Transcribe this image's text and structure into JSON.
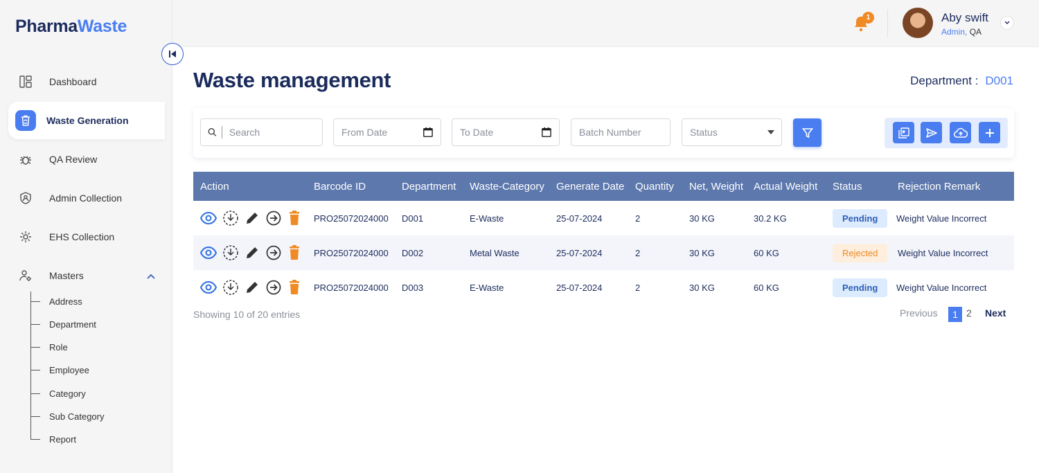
{
  "brand": {
    "part1": "Pharma",
    "part2": "Waste"
  },
  "sidebar": {
    "items": [
      {
        "label": "Dashboard",
        "icon": "dashboard-icon"
      },
      {
        "label": "Waste Generation",
        "icon": "recycle-bin-icon",
        "active": true
      },
      {
        "label": "QA Review",
        "icon": "bug-icon"
      },
      {
        "label": "Admin Collection",
        "icon": "shield-user-icon"
      },
      {
        "label": "EHS Collection",
        "icon": "gear-user-icon"
      },
      {
        "label": "Masters",
        "icon": "users-settings-icon",
        "expanded": true
      }
    ],
    "sub_items": [
      "Address",
      "Department",
      "Role",
      "Employee",
      "Category",
      "Sub Category",
      "Report"
    ]
  },
  "topbar": {
    "notification_count": "1",
    "user_name": "Aby swift",
    "user_role_primary": "Admin,",
    "user_role_secondary": " QA"
  },
  "page": {
    "title": "Waste management",
    "department_label": "Department :",
    "department_value": "D001"
  },
  "filters": {
    "search_placeholder": "Search",
    "from_date_placeholder": "From Date",
    "to_date_placeholder": "To Date",
    "batch_placeholder": "Batch Number",
    "status_placeholder": "Status"
  },
  "table": {
    "columns": [
      "Action",
      "Barcode ID",
      "Department",
      "Waste-Category",
      "Generate Date",
      "Quantity",
      "Net, Weight",
      "Actual Weight",
      "Status",
      "Rejection Remark"
    ],
    "rows": [
      {
        "barcode": "PRO25072024000",
        "department": "D001",
        "category": "E-Waste",
        "date": "25-07-2024",
        "quantity": "2",
        "net_weight": "30 KG",
        "actual_weight": "30.2 KG",
        "status": "Pending",
        "remark": "Weight Value Incorrect"
      },
      {
        "barcode": "PRO25072024000",
        "department": "D002",
        "category": "Metal Waste",
        "date": "25-07-2024",
        "quantity": "2",
        "net_weight": "30 KG",
        "actual_weight": "60 KG",
        "status": "Rejected",
        "remark": "Weight Value Incorrect"
      },
      {
        "barcode": "PRO25072024000",
        "department": "D003",
        "category": "E-Waste",
        "date": "25-07-2024",
        "quantity": "2",
        "net_weight": "30 KG",
        "actual_weight": "60 KG",
        "status": "Pending",
        "remark": "Weight Value Incorrect"
      }
    ]
  },
  "pagination": {
    "summary": "Showing 10 of 20 entries",
    "previous": "Previous",
    "page1": "1",
    "page2": "2",
    "next": "Next"
  },
  "colors": {
    "primary": "#4a7ef0",
    "navy": "#1b2b5c",
    "header": "#5d78ad",
    "orange": "#f08a24"
  }
}
